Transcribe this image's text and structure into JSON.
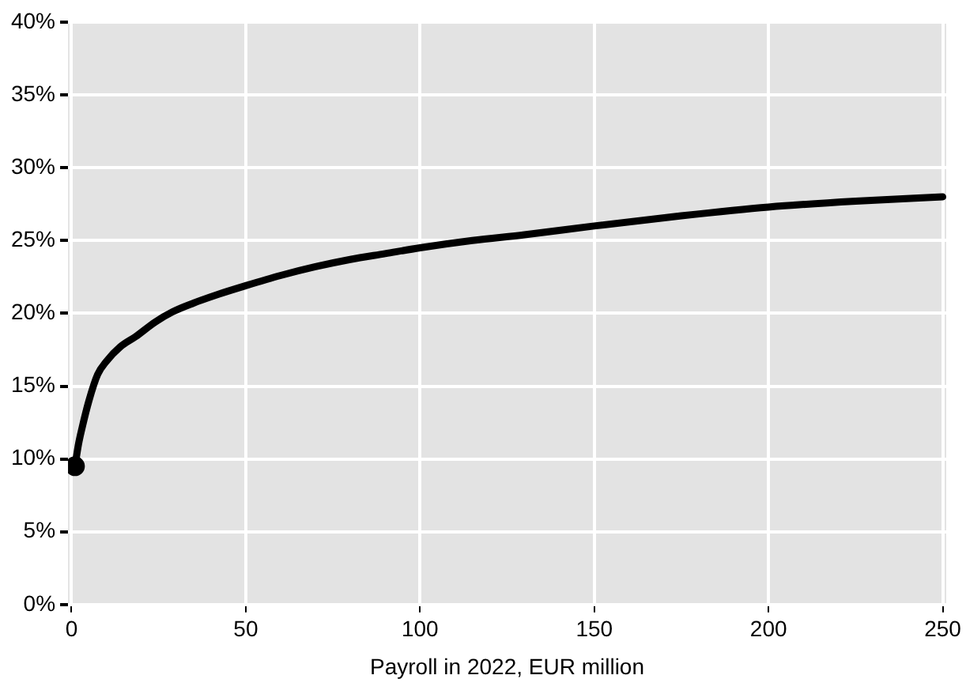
{
  "chart_data": {
    "type": "line",
    "xlabel": "Payroll in 2022, EUR million",
    "x": [
      1,
      2,
      3,
      5,
      7.5,
      10,
      14,
      18.4,
      24,
      29,
      35,
      42,
      50,
      60,
      70,
      80,
      90,
      100,
      115,
      130,
      150,
      175,
      200,
      225,
      250
    ],
    "series": [
      {
        "color": "#000000",
        "values": [
          9.5,
          11,
          12.1,
          14,
          15.8,
          16.7,
          17.7,
          18.4,
          19.4,
          20.1,
          20.7,
          21.3,
          21.9,
          22.6,
          23.2,
          23.7,
          24.1,
          24.5,
          25.0,
          25.4,
          26.0,
          26.7,
          27.3,
          27.7,
          28.0
        ]
      }
    ],
    "xlim": [
      -1,
      251
    ],
    "xticks": [
      0,
      50,
      100,
      150,
      200,
      250
    ],
    "ylim": [
      0,
      40
    ],
    "yticks": [
      {
        "value": 0,
        "label": "0%"
      },
      {
        "value": 5,
        "label": "5%"
      },
      {
        "value": 10,
        "label": "10%"
      },
      {
        "value": 15,
        "label": "15%"
      },
      {
        "value": 20,
        "label": "20%"
      },
      {
        "value": 25,
        "label": "25%"
      },
      {
        "value": 30,
        "label": "30%"
      },
      {
        "value": 35,
        "label": "35%"
      },
      {
        "value": 40,
        "label": "40%"
      }
    ],
    "grid": true,
    "legend": false
  }
}
